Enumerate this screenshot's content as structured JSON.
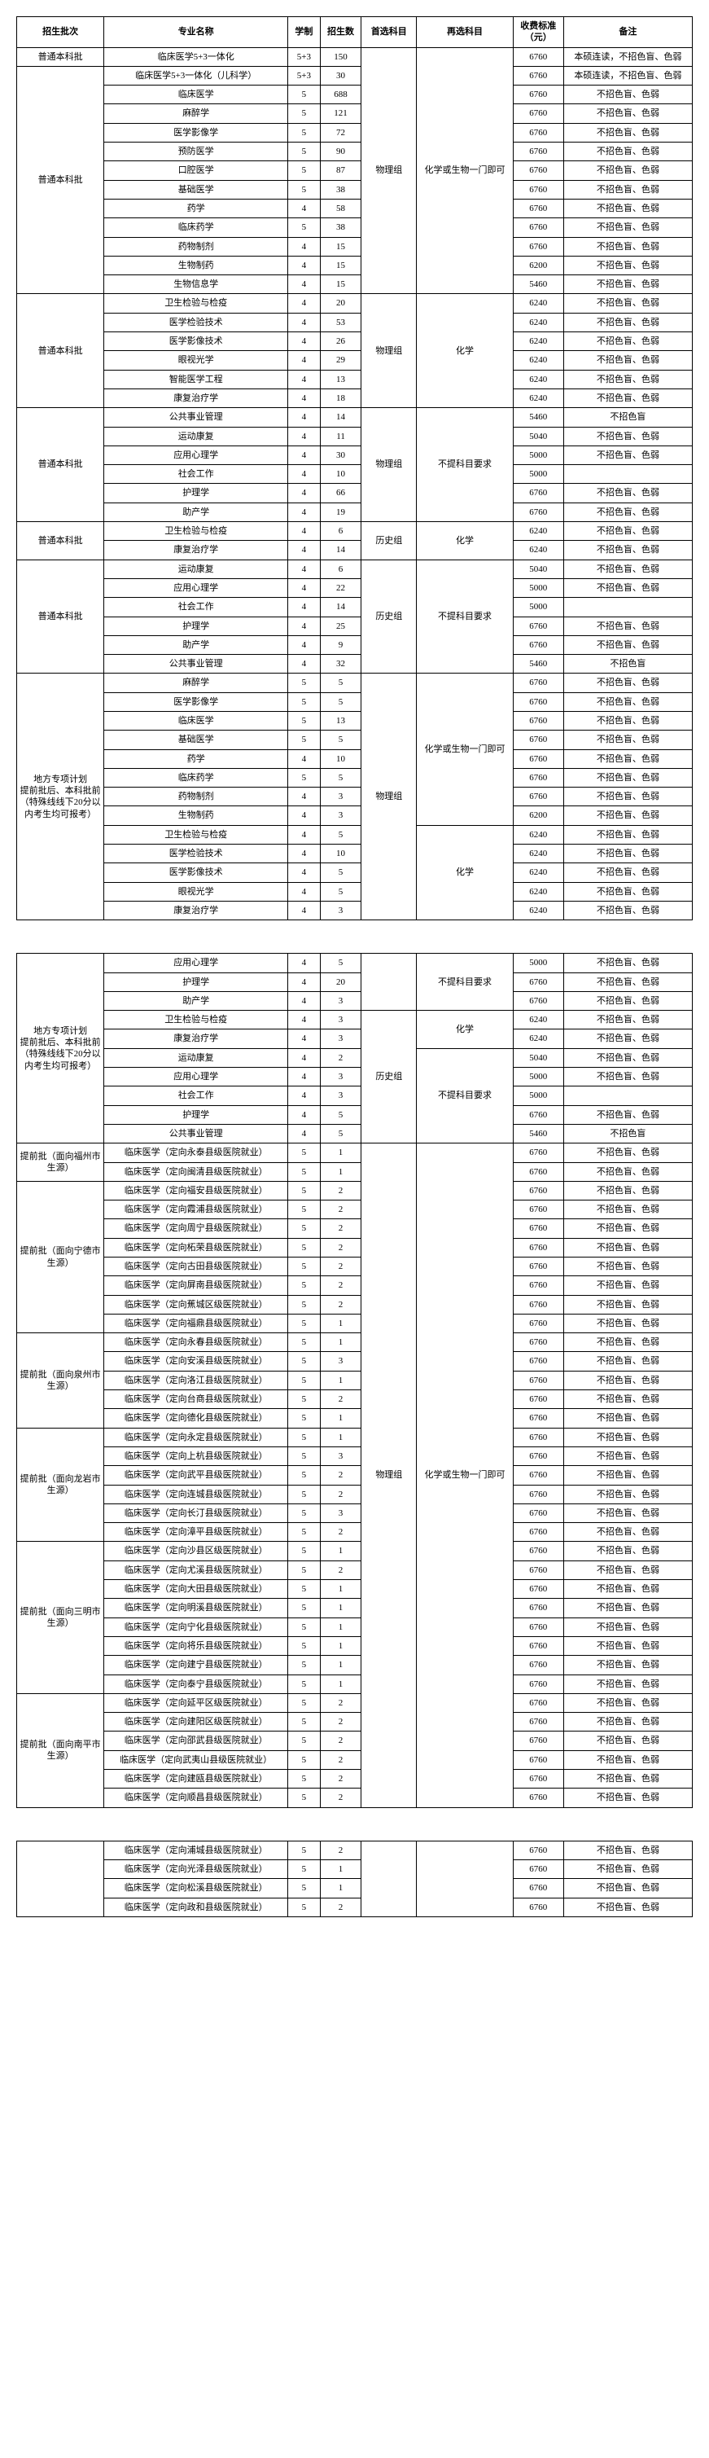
{
  "headers": {
    "batch": "招生批次",
    "major": "专业名称",
    "xuezhi": "学制",
    "num": "招生数",
    "sub1": "首选科目",
    "sub2": "再选科目",
    "fee": "收费标准（元）",
    "note": "备注"
  },
  "subjects": {
    "wuli": "物理组",
    "lishi": "历史组",
    "huaxue": "化学",
    "huaxueOrBio": "化学或生物一门即可",
    "noReq": "不提科目要求"
  },
  "notes": {
    "benshuo": "本硕连读，不招色盲、色弱",
    "buZhaoSe": "不招色盲、色弱",
    "buZhaoMang": "不招色盲"
  },
  "batches": {
    "putong": "普通本科批",
    "difang": "地方专项计划",
    "difangNote": "提前批后、本科批前（特殊线线下20分以内考生均可报考）",
    "tiQianFuzhou": "提前批（面向福州市生源）",
    "tiQianNingde": "提前批（面向宁德市生源）",
    "tiQianQuanzhou": "提前批（面向泉州市生源）",
    "tiQianLongyan": "提前批（面向龙岩市生源）",
    "tiQianSanming": "提前批（面向三明市生源）",
    "tiQianNanping": "提前批（面向南平市生源）"
  },
  "page1": {
    "group1": {
      "batch": "putong",
      "sub1": "wuli",
      "sub2": "huaxueOrBio",
      "rows": [
        {
          "major": "临床医学5+3一体化",
          "xz": "5+3",
          "num": "150",
          "fee": "6760",
          "note": "benshuo"
        },
        {
          "major": "临床医学5+3一体化（儿科学）",
          "xz": "5+3",
          "num": "30",
          "fee": "6760",
          "note": "benshuo"
        },
        {
          "major": "临床医学",
          "xz": "5",
          "num": "688",
          "fee": "6760",
          "note": "buZhaoSe"
        },
        {
          "major": "麻醉学",
          "xz": "5",
          "num": "121",
          "fee": "6760",
          "note": "buZhaoSe"
        },
        {
          "major": "医学影像学",
          "xz": "5",
          "num": "72",
          "fee": "6760",
          "note": "buZhaoSe"
        },
        {
          "major": "预防医学",
          "xz": "5",
          "num": "90",
          "fee": "6760",
          "note": "buZhaoSe"
        },
        {
          "major": "口腔医学",
          "xz": "5",
          "num": "87",
          "fee": "6760",
          "note": "buZhaoSe"
        },
        {
          "major": "基础医学",
          "xz": "5",
          "num": "38",
          "fee": "6760",
          "note": "buZhaoSe"
        },
        {
          "major": "药学",
          "xz": "4",
          "num": "58",
          "fee": "6760",
          "note": "buZhaoSe"
        },
        {
          "major": "临床药学",
          "xz": "5",
          "num": "38",
          "fee": "6760",
          "note": "buZhaoSe"
        },
        {
          "major": "药物制剂",
          "xz": "4",
          "num": "15",
          "fee": "6760",
          "note": "buZhaoSe"
        },
        {
          "major": "生物制药",
          "xz": "4",
          "num": "15",
          "fee": "6200",
          "note": "buZhaoSe"
        },
        {
          "major": "生物信息学",
          "xz": "4",
          "num": "15",
          "fee": "5460",
          "note": "buZhaoSe"
        }
      ]
    },
    "group2": {
      "batch": "putong",
      "sub1": "wuli",
      "sub2": "huaxue",
      "rows": [
        {
          "major": "卫生检验与检疫",
          "xz": "4",
          "num": "20",
          "fee": "6240",
          "note": "buZhaoSe"
        },
        {
          "major": "医学检验技术",
          "xz": "4",
          "num": "53",
          "fee": "6240",
          "note": "buZhaoSe"
        },
        {
          "major": "医学影像技术",
          "xz": "4",
          "num": "26",
          "fee": "6240",
          "note": "buZhaoSe"
        },
        {
          "major": "眼视光学",
          "xz": "4",
          "num": "29",
          "fee": "6240",
          "note": "buZhaoSe"
        },
        {
          "major": "智能医学工程",
          "xz": "4",
          "num": "13",
          "fee": "6240",
          "note": "buZhaoSe"
        },
        {
          "major": "康复治疗学",
          "xz": "4",
          "num": "18",
          "fee": "6240",
          "note": "buZhaoSe"
        }
      ]
    },
    "group3": {
      "batch": "putong",
      "sub1": "wuli",
      "sub2": "noReq",
      "rows": [
        {
          "major": "公共事业管理",
          "xz": "4",
          "num": "14",
          "fee": "5460",
          "note": "buZhaoMang"
        },
        {
          "major": "运动康复",
          "xz": "4",
          "num": "11",
          "fee": "5040",
          "note": "buZhaoSe"
        },
        {
          "major": "应用心理学",
          "xz": "4",
          "num": "30",
          "fee": "5000",
          "note": "buZhaoSe"
        },
        {
          "major": "社会工作",
          "xz": "4",
          "num": "10",
          "fee": "5000",
          "note": ""
        },
        {
          "major": "护理学",
          "xz": "4",
          "num": "66",
          "fee": "6760",
          "note": "buZhaoSe"
        },
        {
          "major": "助产学",
          "xz": "4",
          "num": "19",
          "fee": "6760",
          "note": "buZhaoSe"
        }
      ]
    },
    "group4": {
      "batch": "putong",
      "sub1": "lishi",
      "sub2": "huaxue",
      "rows": [
        {
          "major": "卫生检验与检疫",
          "xz": "4",
          "num": "6",
          "fee": "6240",
          "note": "buZhaoSe"
        },
        {
          "major": "康复治疗学",
          "xz": "4",
          "num": "14",
          "fee": "6240",
          "note": "buZhaoSe"
        }
      ]
    },
    "group5": {
      "batch": "putong",
      "sub1": "lishi",
      "sub2": "noReq",
      "rows": [
        {
          "major": "运动康复",
          "xz": "4",
          "num": "6",
          "fee": "5040",
          "note": "buZhaoSe"
        },
        {
          "major": "应用心理学",
          "xz": "4",
          "num": "22",
          "fee": "5000",
          "note": "buZhaoSe"
        },
        {
          "major": "社会工作",
          "xz": "4",
          "num": "14",
          "fee": "5000",
          "note": ""
        },
        {
          "major": "护理学",
          "xz": "4",
          "num": "25",
          "fee": "6760",
          "note": "buZhaoSe"
        },
        {
          "major": "助产学",
          "xz": "4",
          "num": "9",
          "fee": "6760",
          "note": "buZhaoSe"
        },
        {
          "major": "公共事业管理",
          "xz": "4",
          "num": "32",
          "fee": "5460",
          "note": "buZhaoMang"
        }
      ]
    },
    "group6": {
      "batch": "difang",
      "sub1": "wuli",
      "sub2a": "huaxueOrBio",
      "rowsA": [
        {
          "major": "麻醉学",
          "xz": "5",
          "num": "5",
          "fee": "6760",
          "note": "buZhaoSe"
        },
        {
          "major": "医学影像学",
          "xz": "5",
          "num": "5",
          "fee": "6760",
          "note": "buZhaoSe"
        },
        {
          "major": "临床医学",
          "xz": "5",
          "num": "13",
          "fee": "6760",
          "note": "buZhaoSe"
        },
        {
          "major": "基础医学",
          "xz": "5",
          "num": "5",
          "fee": "6760",
          "note": "buZhaoSe"
        },
        {
          "major": "药学",
          "xz": "4",
          "num": "10",
          "fee": "6760",
          "note": "buZhaoSe"
        },
        {
          "major": "临床药学",
          "xz": "5",
          "num": "5",
          "fee": "6760",
          "note": "buZhaoSe"
        },
        {
          "major": "药物制剂",
          "xz": "4",
          "num": "3",
          "fee": "6760",
          "note": "buZhaoSe"
        },
        {
          "major": "生物制药",
          "xz": "4",
          "num": "3",
          "fee": "6200",
          "note": "buZhaoSe"
        }
      ],
      "sub2b": "huaxue",
      "rowsB": [
        {
          "major": "卫生检验与检疫",
          "xz": "4",
          "num": "5",
          "fee": "6240",
          "note": "buZhaoSe"
        },
        {
          "major": "医学检验技术",
          "xz": "4",
          "num": "10",
          "fee": "6240",
          "note": "buZhaoSe"
        },
        {
          "major": "医学影像技术",
          "xz": "4",
          "num": "5",
          "fee": "6240",
          "note": "buZhaoSe"
        },
        {
          "major": "眼视光学",
          "xz": "4",
          "num": "5",
          "fee": "6240",
          "note": "buZhaoSe"
        },
        {
          "major": "康复治疗学",
          "xz": "4",
          "num": "3",
          "fee": "6240",
          "note": "buZhaoSe"
        }
      ]
    }
  },
  "page2": {
    "group7": {
      "batch": "difang",
      "rows0_sub2": "noReq",
      "rows0": [
        {
          "major": "应用心理学",
          "xz": "4",
          "num": "5",
          "fee": "5000",
          "note": "buZhaoSe"
        },
        {
          "major": "护理学",
          "xz": "4",
          "num": "20",
          "fee": "6760",
          "note": "buZhaoSe"
        },
        {
          "major": "助产学",
          "xz": "4",
          "num": "3",
          "fee": "6760",
          "note": "buZhaoSe"
        }
      ],
      "sub1b": "lishi",
      "rowsA_sub2": "huaxue",
      "rowsA": [
        {
          "major": "卫生检验与检疫",
          "xz": "4",
          "num": "3",
          "fee": "6240",
          "note": "buZhaoSe"
        },
        {
          "major": "康复治疗学",
          "xz": "4",
          "num": "3",
          "fee": "6240",
          "note": "buZhaoSe"
        }
      ],
      "rowsB_sub2": "noReq",
      "rowsB": [
        {
          "major": "运动康复",
          "xz": "4",
          "num": "2",
          "fee": "5040",
          "note": "buZhaoSe"
        },
        {
          "major": "应用心理学",
          "xz": "4",
          "num": "3",
          "fee": "5000",
          "note": "buZhaoSe"
        },
        {
          "major": "社会工作",
          "xz": "4",
          "num": "3",
          "fee": "5000",
          "note": ""
        },
        {
          "major": "护理学",
          "xz": "4",
          "num": "5",
          "fee": "6760",
          "note": "buZhaoSe"
        },
        {
          "major": "公共事业管理",
          "xz": "4",
          "num": "5",
          "fee": "5460",
          "note": "buZhaoMang"
        }
      ]
    },
    "clinical": {
      "sub1": "wuli",
      "sub2": "huaxueOrBio",
      "groups": [
        {
          "batch": "tiQianFuzhou",
          "rows": [
            {
              "major": "临床医学（定向永泰县级医院就业）",
              "xz": "5",
              "num": "1",
              "fee": "6760",
              "note": "buZhaoSe"
            },
            {
              "major": "临床医学（定向闽清县级医院就业）",
              "xz": "5",
              "num": "1",
              "fee": "6760",
              "note": "buZhaoSe"
            }
          ]
        },
        {
          "batch": "tiQianNingde",
          "rows": [
            {
              "major": "临床医学（定向福安县级医院就业）",
              "xz": "5",
              "num": "2",
              "fee": "6760",
              "note": "buZhaoSe"
            },
            {
              "major": "临床医学（定向霞浦县级医院就业）",
              "xz": "5",
              "num": "2",
              "fee": "6760",
              "note": "buZhaoSe"
            },
            {
              "major": "临床医学（定向周宁县级医院就业）",
              "xz": "5",
              "num": "2",
              "fee": "6760",
              "note": "buZhaoSe"
            },
            {
              "major": "临床医学（定向柘荣县级医院就业）",
              "xz": "5",
              "num": "2",
              "fee": "6760",
              "note": "buZhaoSe"
            },
            {
              "major": "临床医学（定向古田县级医院就业）",
              "xz": "5",
              "num": "2",
              "fee": "6760",
              "note": "buZhaoSe"
            },
            {
              "major": "临床医学（定向屏南县级医院就业）",
              "xz": "5",
              "num": "2",
              "fee": "6760",
              "note": "buZhaoSe"
            },
            {
              "major": "临床医学（定向蕉城区级医院就业）",
              "xz": "5",
              "num": "2",
              "fee": "6760",
              "note": "buZhaoSe"
            },
            {
              "major": "临床医学（定向福鼎县级医院就业）",
              "xz": "5",
              "num": "1",
              "fee": "6760",
              "note": "buZhaoSe"
            }
          ]
        },
        {
          "batch": "tiQianQuanzhou",
          "rows": [
            {
              "major": "临床医学（定向永春县级医院就业）",
              "xz": "5",
              "num": "1",
              "fee": "6760",
              "note": "buZhaoSe"
            },
            {
              "major": "临床医学（定向安溪县级医院就业）",
              "xz": "5",
              "num": "3",
              "fee": "6760",
              "note": "buZhaoSe"
            },
            {
              "major": "临床医学（定向洛江县级医院就业）",
              "xz": "5",
              "num": "1",
              "fee": "6760",
              "note": "buZhaoSe"
            },
            {
              "major": "临床医学（定向台商县级医院就业）",
              "xz": "5",
              "num": "2",
              "fee": "6760",
              "note": "buZhaoSe"
            },
            {
              "major": "临床医学（定向德化县级医院就业）",
              "xz": "5",
              "num": "1",
              "fee": "6760",
              "note": "buZhaoSe"
            }
          ]
        },
        {
          "batch": "tiQianLongyan",
          "rows": [
            {
              "major": "临床医学（定向永定县级医院就业）",
              "xz": "5",
              "num": "1",
              "fee": "6760",
              "note": "buZhaoSe"
            },
            {
              "major": "临床医学（定向上杭县级医院就业）",
              "xz": "5",
              "num": "3",
              "fee": "6760",
              "note": "buZhaoSe"
            },
            {
              "major": "临床医学（定向武平县级医院就业）",
              "xz": "5",
              "num": "2",
              "fee": "6760",
              "note": "buZhaoSe"
            },
            {
              "major": "临床医学（定向连城县级医院就业）",
              "xz": "5",
              "num": "2",
              "fee": "6760",
              "note": "buZhaoSe"
            },
            {
              "major": "临床医学（定向长汀县级医院就业）",
              "xz": "5",
              "num": "3",
              "fee": "6760",
              "note": "buZhaoSe"
            },
            {
              "major": "临床医学（定向漳平县级医院就业）",
              "xz": "5",
              "num": "2",
              "fee": "6760",
              "note": "buZhaoSe"
            }
          ]
        },
        {
          "batch": "tiQianSanming",
          "rows": [
            {
              "major": "临床医学（定向沙县区级医院就业）",
              "xz": "5",
              "num": "1",
              "fee": "6760",
              "note": "buZhaoSe"
            },
            {
              "major": "临床医学（定向尤溪县级医院就业）",
              "xz": "5",
              "num": "2",
              "fee": "6760",
              "note": "buZhaoSe"
            },
            {
              "major": "临床医学（定向大田县级医院就业）",
              "xz": "5",
              "num": "1",
              "fee": "6760",
              "note": "buZhaoSe"
            },
            {
              "major": "临床医学（定向明溪县级医院就业）",
              "xz": "5",
              "num": "1",
              "fee": "6760",
              "note": "buZhaoSe"
            },
            {
              "major": "临床医学（定向宁化县级医院就业）",
              "xz": "5",
              "num": "1",
              "fee": "6760",
              "note": "buZhaoSe"
            },
            {
              "major": "临床医学（定向将乐县级医院就业）",
              "xz": "5",
              "num": "1",
              "fee": "6760",
              "note": "buZhaoSe"
            },
            {
              "major": "临床医学（定向建宁县级医院就业）",
              "xz": "5",
              "num": "1",
              "fee": "6760",
              "note": "buZhaoSe"
            },
            {
              "major": "临床医学（定向泰宁县级医院就业）",
              "xz": "5",
              "num": "1",
              "fee": "6760",
              "note": "buZhaoSe"
            }
          ]
        },
        {
          "batch": "tiQianNanping",
          "rows": [
            {
              "major": "临床医学（定向延平区级医院就业）",
              "xz": "5",
              "num": "2",
              "fee": "6760",
              "note": "buZhaoSe"
            },
            {
              "major": "临床医学（定向建阳区级医院就业）",
              "xz": "5",
              "num": "2",
              "fee": "6760",
              "note": "buZhaoSe"
            },
            {
              "major": "临床医学（定向邵武县级医院就业）",
              "xz": "5",
              "num": "2",
              "fee": "6760",
              "note": "buZhaoSe"
            },
            {
              "major": "临床医学（定向武夷山县级医院就业）",
              "xz": "5",
              "num": "2",
              "fee": "6760",
              "note": "buZhaoSe"
            },
            {
              "major": "临床医学（定向建瓯县级医院就业）",
              "xz": "5",
              "num": "2",
              "fee": "6760",
              "note": "buZhaoSe"
            },
            {
              "major": "临床医学（定向顺昌县级医院就业）",
              "xz": "5",
              "num": "2",
              "fee": "6760",
              "note": "buZhaoSe"
            }
          ]
        }
      ]
    }
  },
  "page3": {
    "rows": [
      {
        "major": "临床医学（定向浦城县级医院就业）",
        "xz": "5",
        "num": "2",
        "fee": "6760",
        "note": "buZhaoSe"
      },
      {
        "major": "临床医学（定向光泽县级医院就业）",
        "xz": "5",
        "num": "1",
        "fee": "6760",
        "note": "buZhaoSe"
      },
      {
        "major": "临床医学（定向松溪县级医院就业）",
        "xz": "5",
        "num": "1",
        "fee": "6760",
        "note": "buZhaoSe"
      },
      {
        "major": "临床医学（定向政和县级医院就业）",
        "xz": "5",
        "num": "2",
        "fee": "6760",
        "note": "buZhaoSe"
      }
    ]
  }
}
